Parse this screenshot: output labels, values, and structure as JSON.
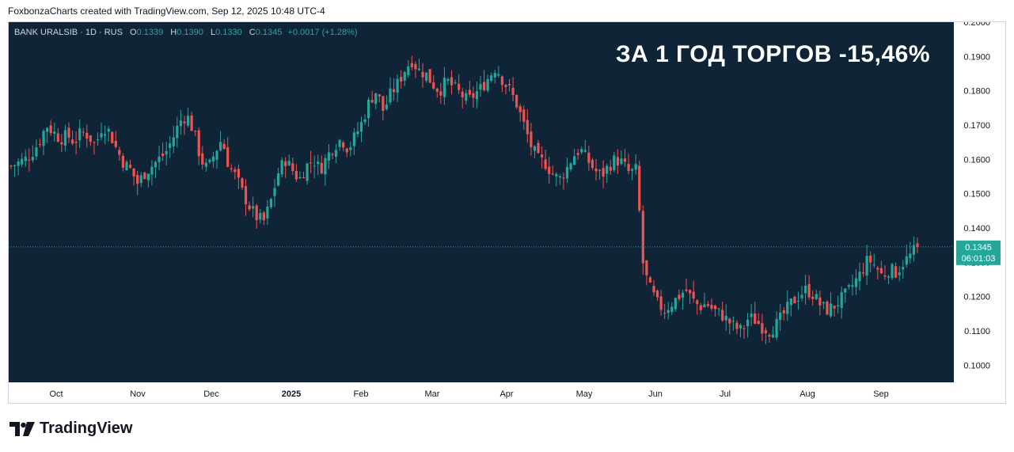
{
  "header": {
    "credit": "FoxbonzaCharts created with TradingView.com, Sep 12, 2025 10:48 UTC-4"
  },
  "legend": {
    "symbol": "BANK URALSIB · 1D · RUS",
    "open_label": "O",
    "open": "0.1339",
    "high_label": "H",
    "high": "0.1390",
    "low_label": "L",
    "low": "0.1330",
    "close_label": "C",
    "close": "0.1345",
    "change": "+0.0017 (+1.28%)"
  },
  "overlay_title": "ЗА 1 ГОД ТОРГОВ -15,46%",
  "price_tag": {
    "price": "0.1345",
    "countdown": "06:01:03"
  },
  "brand": {
    "name": "TradingView",
    "icon": "tradingview-logo-icon"
  },
  "colors": {
    "background": "#0f2537",
    "up": "#26a69a",
    "down": "#ef5350",
    "axis_text": "#131722",
    "price_line": "#26a69a"
  },
  "chart_data": {
    "type": "candlestick",
    "title": "",
    "ylim": [
      0.095,
      0.2
    ],
    "y_ticks": [
      "0.1000",
      "0.1100",
      "0.1200",
      "0.1300",
      "0.1400",
      "0.1500",
      "0.1600",
      "0.1700",
      "0.1800",
      "0.1900",
      "0.2000"
    ],
    "x_ticks": [
      "Oct",
      "Nov",
      "Dec",
      "2025",
      "Feb",
      "Mar",
      "Apr",
      "May",
      "Jun",
      "Jul",
      "Aug",
      "Sep"
    ],
    "last_price": 0.1345,
    "close_series": [
      0.158,
      0.159,
      0.16,
      0.162,
      0.165,
      0.17,
      0.168,
      0.166,
      0.167,
      0.165,
      0.168,
      0.167,
      0.164,
      0.17,
      0.168,
      0.163,
      0.159,
      0.157,
      0.153,
      0.156,
      0.158,
      0.16,
      0.162,
      0.166,
      0.171,
      0.173,
      0.168,
      0.16,
      0.157,
      0.162,
      0.166,
      0.158,
      0.155,
      0.15,
      0.146,
      0.143,
      0.142,
      0.148,
      0.156,
      0.16,
      0.157,
      0.154,
      0.158,
      0.16,
      0.157,
      0.161,
      0.164,
      0.166,
      0.163,
      0.167,
      0.171,
      0.177,
      0.18,
      0.174,
      0.179,
      0.182,
      0.186,
      0.189,
      0.186,
      0.185,
      0.182,
      0.18,
      0.183,
      0.181,
      0.179,
      0.177,
      0.179,
      0.181,
      0.184,
      0.187,
      0.183,
      0.18,
      0.176,
      0.17,
      0.164,
      0.16,
      0.159,
      0.156,
      0.154,
      0.157,
      0.161,
      0.163,
      0.16,
      0.157,
      0.155,
      0.158,
      0.16,
      0.159,
      0.156,
      0.157,
      0.128,
      0.122,
      0.118,
      0.116,
      0.118,
      0.12,
      0.122,
      0.119,
      0.117,
      0.118,
      0.116,
      0.115,
      0.113,
      0.111,
      0.11,
      0.114,
      0.113,
      0.111,
      0.11,
      0.112,
      0.115,
      0.118,
      0.12,
      0.122,
      0.121,
      0.118,
      0.116,
      0.117,
      0.119,
      0.121,
      0.124,
      0.127,
      0.131,
      0.129,
      0.126,
      0.128,
      0.127,
      0.13,
      0.132,
      0.1345
    ]
  }
}
